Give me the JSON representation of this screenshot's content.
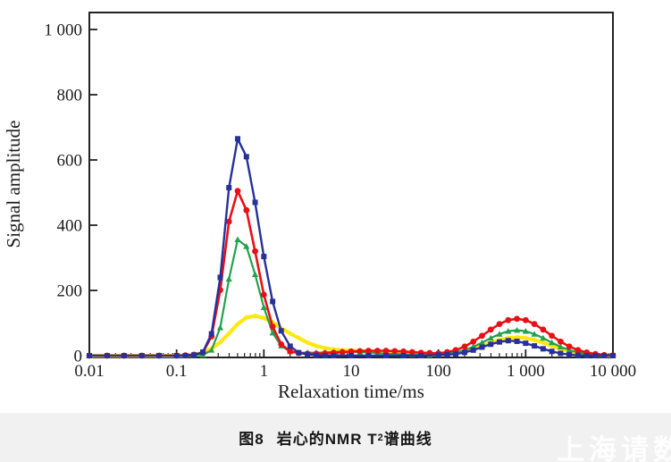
{
  "chart_data": {
    "type": "line",
    "title": "",
    "xlabel": "Relaxation time/ms",
    "ylabel": "Signal amplitude",
    "x_scale": "log",
    "xlim": [
      0.01,
      10000
    ],
    "ylim": [
      0,
      1000
    ],
    "grid": false,
    "legend": "none",
    "x_ticks": [
      "0.01",
      "0.1",
      "1",
      "10",
      "100",
      "1 000",
      "10 000"
    ],
    "x_tick_values": [
      0.01,
      0.1,
      1,
      10,
      100,
      1000,
      10000
    ],
    "y_ticks": [
      "0",
      "200",
      "400",
      "600",
      "800",
      "1 000"
    ],
    "y_tick_values": [
      0,
      200,
      400,
      600,
      800,
      1000
    ],
    "axis_color": "#222222",
    "series": [
      {
        "name": "yellow-curve",
        "color": "#ffe712",
        "marker": "diamond",
        "line_width": 4.2,
        "marker_size": 3,
        "points": [
          [
            0.01,
            0
          ],
          [
            0.016,
            0
          ],
          [
            0.025,
            0
          ],
          [
            0.04,
            0
          ],
          [
            0.063,
            0
          ],
          [
            0.1,
            0
          ],
          [
            0.126,
            1
          ],
          [
            0.158,
            3
          ],
          [
            0.2,
            9
          ],
          [
            0.251,
            21
          ],
          [
            0.316,
            41
          ],
          [
            0.398,
            68
          ],
          [
            0.501,
            97
          ],
          [
            0.631,
            117
          ],
          [
            0.794,
            122
          ],
          [
            1,
            115
          ],
          [
            1.26,
            102
          ],
          [
            1.58,
            84
          ],
          [
            2,
            68
          ],
          [
            2.51,
            54
          ],
          [
            3.16,
            40
          ],
          [
            3.98,
            30
          ],
          [
            5.01,
            23
          ],
          [
            6.31,
            19
          ],
          [
            7.94,
            17
          ],
          [
            10,
            16
          ],
          [
            12.6,
            15
          ],
          [
            15.8,
            13
          ],
          [
            20,
            12
          ],
          [
            25.1,
            11
          ],
          [
            31.6,
            9
          ],
          [
            39.8,
            7
          ],
          [
            50.1,
            6
          ],
          [
            63.1,
            4
          ],
          [
            79.4,
            3
          ],
          [
            100,
            3
          ],
          [
            126,
            5
          ],
          [
            158,
            9
          ],
          [
            200,
            14
          ],
          [
            251,
            21
          ],
          [
            316,
            30
          ],
          [
            398,
            40
          ],
          [
            501,
            48
          ],
          [
            631,
            54
          ],
          [
            794,
            56
          ],
          [
            1000,
            54
          ],
          [
            1259,
            48
          ],
          [
            1585,
            40
          ],
          [
            1995,
            30
          ],
          [
            2512,
            21
          ],
          [
            3162,
            14
          ],
          [
            3981,
            8
          ],
          [
            5012,
            4
          ],
          [
            6310,
            2
          ],
          [
            7943,
            1
          ],
          [
            10000,
            0
          ]
        ]
      },
      {
        "name": "green-curve",
        "color": "#23a14b",
        "marker": "triangle",
        "line_width": 2.2,
        "marker_size": 3.6,
        "points": [
          [
            0.01,
            0
          ],
          [
            0.016,
            0
          ],
          [
            0.025,
            0
          ],
          [
            0.04,
            0
          ],
          [
            0.063,
            0
          ],
          [
            0.1,
            0
          ],
          [
            0.126,
            0
          ],
          [
            0.158,
            1
          ],
          [
            0.2,
            2
          ],
          [
            0.251,
            17
          ],
          [
            0.316,
            86
          ],
          [
            0.398,
            235
          ],
          [
            0.501,
            356
          ],
          [
            0.631,
            335
          ],
          [
            0.794,
            249
          ],
          [
            1,
            148
          ],
          [
            1.26,
            70
          ],
          [
            1.58,
            30
          ],
          [
            2,
            13
          ],
          [
            2.51,
            9
          ],
          [
            3.16,
            9
          ],
          [
            3.98,
            9
          ],
          [
            5.01,
            10
          ],
          [
            6.31,
            11
          ],
          [
            7.94,
            12
          ],
          [
            10,
            12
          ],
          [
            12.6,
            11
          ],
          [
            15.8,
            10
          ],
          [
            20,
            8
          ],
          [
            25.1,
            6
          ],
          [
            31.6,
            5
          ],
          [
            39.8,
            4
          ],
          [
            50.1,
            3
          ],
          [
            63.1,
            2
          ],
          [
            79.4,
            2
          ],
          [
            100,
            3
          ],
          [
            126,
            6
          ],
          [
            158,
            10
          ],
          [
            200,
            17
          ],
          [
            251,
            27
          ],
          [
            316,
            40
          ],
          [
            398,
            54
          ],
          [
            501,
            66
          ],
          [
            631,
            75
          ],
          [
            794,
            78
          ],
          [
            1000,
            75
          ],
          [
            1259,
            66
          ],
          [
            1585,
            54
          ],
          [
            1995,
            40
          ],
          [
            2512,
            27
          ],
          [
            3162,
            17
          ],
          [
            3981,
            10
          ],
          [
            5012,
            5
          ],
          [
            6310,
            2
          ],
          [
            7943,
            1
          ],
          [
            10000,
            0
          ]
        ]
      },
      {
        "name": "red-curve",
        "color": "#e90f15",
        "marker": "circle",
        "line_width": 2.6,
        "marker_size": 3.4,
        "points": [
          [
            0.01,
            0
          ],
          [
            0.016,
            0
          ],
          [
            0.025,
            0
          ],
          [
            0.04,
            0
          ],
          [
            0.063,
            0
          ],
          [
            0.1,
            0
          ],
          [
            0.126,
            1
          ],
          [
            0.158,
            3
          ],
          [
            0.2,
            10
          ],
          [
            0.251,
            59
          ],
          [
            0.316,
            201
          ],
          [
            0.398,
            411
          ],
          [
            0.501,
            505
          ],
          [
            0.631,
            446
          ],
          [
            0.794,
            320
          ],
          [
            1,
            187
          ],
          [
            1.26,
            89
          ],
          [
            1.58,
            35
          ],
          [
            2,
            13
          ],
          [
            2.51,
            8
          ],
          [
            3.16,
            6
          ],
          [
            3.98,
            6
          ],
          [
            5.01,
            7
          ],
          [
            6.31,
            9
          ],
          [
            7.94,
            11
          ],
          [
            10,
            13
          ],
          [
            12.6,
            14
          ],
          [
            15.8,
            15
          ],
          [
            20,
            15
          ],
          [
            25.1,
            15
          ],
          [
            31.6,
            14
          ],
          [
            39.8,
            13
          ],
          [
            50.1,
            11
          ],
          [
            63.1,
            9
          ],
          [
            79.4,
            8
          ],
          [
            100,
            7
          ],
          [
            126,
            11
          ],
          [
            158,
            17
          ],
          [
            200,
            28
          ],
          [
            251,
            43
          ],
          [
            316,
            61
          ],
          [
            398,
            80
          ],
          [
            501,
            97
          ],
          [
            631,
            109
          ],
          [
            794,
            113
          ],
          [
            1000,
            109
          ],
          [
            1259,
            97
          ],
          [
            1585,
            80
          ],
          [
            1995,
            61
          ],
          [
            2512,
            43
          ],
          [
            3162,
            28
          ],
          [
            3981,
            17
          ],
          [
            5012,
            10
          ],
          [
            6310,
            5
          ],
          [
            7943,
            2
          ],
          [
            10000,
            1
          ]
        ]
      },
      {
        "name": "blue-curve",
        "color": "#27309b",
        "marker": "square",
        "line_width": 2.4,
        "marker_size": 6,
        "points": [
          [
            0.01,
            0
          ],
          [
            0.016,
            0
          ],
          [
            0.025,
            0
          ],
          [
            0.04,
            0
          ],
          [
            0.063,
            0
          ],
          [
            0.1,
            0
          ],
          [
            0.126,
            0
          ],
          [
            0.158,
            2
          ],
          [
            0.2,
            11
          ],
          [
            0.251,
            67
          ],
          [
            0.316,
            240
          ],
          [
            0.398,
            515
          ],
          [
            0.501,
            665
          ],
          [
            0.631,
            610
          ],
          [
            0.794,
            470
          ],
          [
            1,
            304
          ],
          [
            1.26,
            166
          ],
          [
            1.58,
            76
          ],
          [
            2,
            29
          ],
          [
            2.51,
            9
          ],
          [
            3.16,
            4
          ],
          [
            3.98,
            1
          ],
          [
            5.01,
            0
          ],
          [
            6.31,
            0
          ],
          [
            10,
            0
          ],
          [
            15.8,
            0
          ],
          [
            25.1,
            0
          ],
          [
            39.8,
            0
          ],
          [
            63.1,
            0
          ],
          [
            100,
            2
          ],
          [
            126,
            3
          ],
          [
            158,
            5
          ],
          [
            200,
            10
          ],
          [
            251,
            17
          ],
          [
            316,
            26
          ],
          [
            398,
            35
          ],
          [
            501,
            42
          ],
          [
            631,
            46
          ],
          [
            794,
            44
          ],
          [
            1000,
            38
          ],
          [
            1259,
            30
          ],
          [
            1585,
            21
          ],
          [
            1995,
            13
          ],
          [
            2512,
            7
          ],
          [
            3162,
            3
          ],
          [
            3981,
            1
          ],
          [
            5012,
            0
          ],
          [
            6310,
            0
          ],
          [
            7943,
            0
          ],
          [
            10000,
            0
          ]
        ]
      }
    ]
  },
  "caption": {
    "label": "图8",
    "prefix": "岩心的NMR T",
    "sub": "2",
    "suffix": "谱曲线"
  },
  "watermark": {
    "text": "上海请数",
    "color": "#ffffff"
  }
}
